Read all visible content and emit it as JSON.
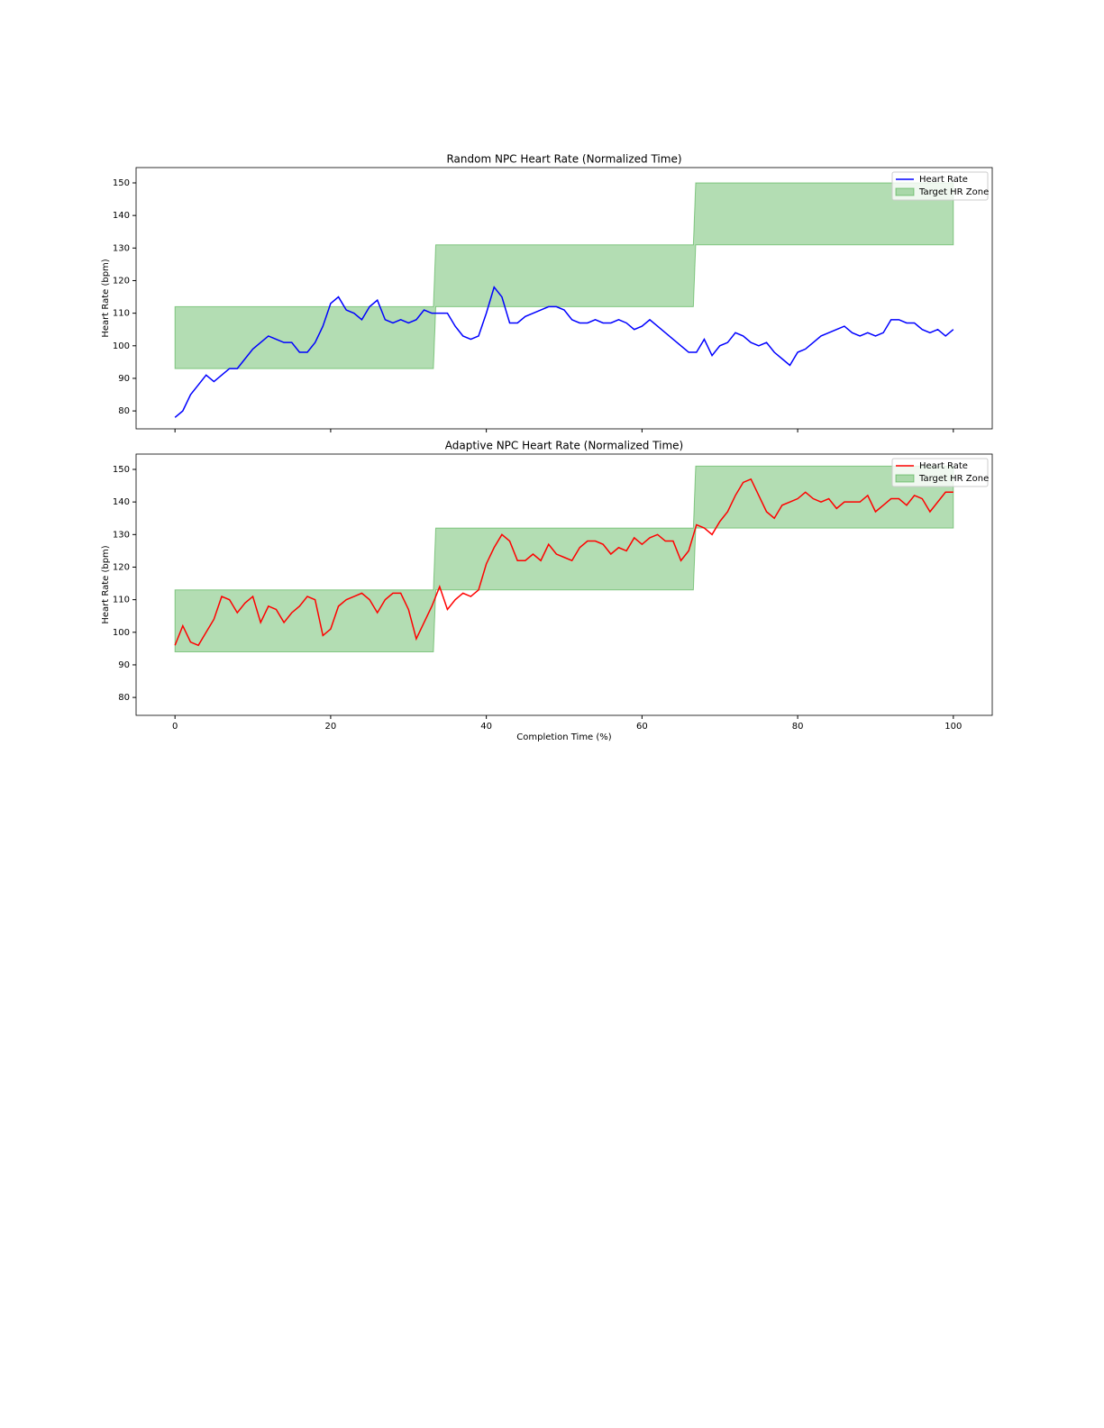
{
  "chart_data": [
    {
      "type": "line",
      "title": "Random NPC Heart Rate (Normalized Time)",
      "ylabel": "Heart Rate (bpm)",
      "xlim": [
        -5,
        105
      ],
      "ylim": [
        74.5,
        154.7
      ],
      "xticks": [
        0,
        20,
        40,
        60,
        80,
        100
      ],
      "xtick_labels": false,
      "yticks": [
        80,
        90,
        100,
        110,
        120,
        130,
        140,
        150
      ],
      "legend": "upper right",
      "x": [
        0,
        1,
        2,
        3,
        4,
        5,
        6,
        7,
        8,
        9,
        10,
        11,
        12,
        13,
        14,
        15,
        16,
        17,
        18,
        19,
        20,
        21,
        22,
        23,
        24,
        25,
        26,
        27,
        28,
        29,
        30,
        31,
        32,
        33,
        34,
        35,
        36,
        37,
        38,
        39,
        40,
        41,
        42,
        43,
        44,
        45,
        46,
        47,
        48,
        49,
        50,
        51,
        52,
        53,
        54,
        55,
        56,
        57,
        58,
        59,
        60,
        61,
        62,
        63,
        64,
        65,
        66,
        67,
        68,
        69,
        70,
        71,
        72,
        73,
        74,
        75,
        76,
        77,
        78,
        79,
        80,
        81,
        82,
        83,
        84,
        85,
        86,
        87,
        88,
        89,
        90,
        91,
        92,
        93,
        94,
        95,
        96,
        97,
        98,
        99,
        100
      ],
      "series": [
        {
          "name": "Heart Rate",
          "color": "#0000ff",
          "values": [
            78,
            80,
            85,
            88,
            91,
            89,
            91,
            93,
            93,
            96,
            99,
            101,
            103,
            102,
            101,
            101,
            98,
            98,
            101,
            106,
            113,
            115,
            111,
            110,
            108,
            112,
            114,
            108,
            107,
            108,
            107,
            108,
            111,
            110,
            110,
            110,
            106,
            103,
            102,
            103,
            110,
            118,
            115,
            107,
            107,
            109,
            110,
            111,
            112,
            112,
            111,
            108,
            107,
            107,
            108,
            107,
            107,
            108,
            107,
            105,
            106,
            108,
            106,
            104,
            102,
            100,
            98,
            98,
            102,
            97,
            100,
            101,
            104,
            103,
            101,
            100,
            101,
            98,
            96,
            94,
            98,
            99,
            101,
            103,
            104,
            105,
            106,
            104,
            103,
            104,
            103,
            104,
            108,
            108,
            107,
            107,
            105,
            104,
            105,
            103,
            105
          ]
        }
      ],
      "zone": {
        "name": "Target HR Zone",
        "color": "#2ca02c",
        "x": [
          0,
          33.2,
          33.5,
          66.6,
          66.9,
          100
        ],
        "lower": [
          93,
          93,
          112,
          112,
          131,
          131
        ],
        "upper": [
          112,
          112,
          131,
          131,
          150,
          150
        ]
      }
    },
    {
      "type": "line",
      "title": "Adaptive NPC Heart Rate (Normalized Time)",
      "ylabel": "Heart Rate (bpm)",
      "xlabel": "Completion Time (%)",
      "xlim": [
        -5,
        105
      ],
      "ylim": [
        74.5,
        154.7
      ],
      "xticks": [
        0,
        20,
        40,
        60,
        80,
        100
      ],
      "xtick_labels": true,
      "yticks": [
        80,
        90,
        100,
        110,
        120,
        130,
        140,
        150
      ],
      "legend": "upper right",
      "x": [
        0,
        1,
        2,
        3,
        4,
        5,
        6,
        7,
        8,
        9,
        10,
        11,
        12,
        13,
        14,
        15,
        16,
        17,
        18,
        19,
        20,
        21,
        22,
        23,
        24,
        25,
        26,
        27,
        28,
        29,
        30,
        31,
        32,
        33,
        34,
        35,
        36,
        37,
        38,
        39,
        40,
        41,
        42,
        43,
        44,
        45,
        46,
        47,
        48,
        49,
        50,
        51,
        52,
        53,
        54,
        55,
        56,
        57,
        58,
        59,
        60,
        61,
        62,
        63,
        64,
        65,
        66,
        67,
        68,
        69,
        70,
        71,
        72,
        73,
        74,
        75,
        76,
        77,
        78,
        79,
        80,
        81,
        82,
        83,
        84,
        85,
        86,
        87,
        88,
        89,
        90,
        91,
        92,
        93,
        94,
        95,
        96,
        97,
        98,
        99,
        100
      ],
      "series": [
        {
          "name": "Heart Rate",
          "color": "#ff0000",
          "values": [
            96,
            102,
            97,
            96,
            100,
            104,
            111,
            110,
            106,
            109,
            111,
            103,
            108,
            107,
            103,
            106,
            108,
            111,
            110,
            99,
            101,
            108,
            110,
            111,
            112,
            110,
            106,
            110,
            112,
            112,
            107,
            98,
            103,
            108,
            114,
            107,
            110,
            112,
            111,
            113,
            121,
            126,
            130,
            128,
            122,
            122,
            124,
            122,
            127,
            124,
            123,
            122,
            126,
            128,
            128,
            127,
            124,
            126,
            125,
            129,
            127,
            129,
            130,
            128,
            128,
            122,
            125,
            133,
            132,
            130,
            134,
            137,
            142,
            146,
            147,
            142,
            137,
            135,
            139,
            140,
            141,
            143,
            141,
            140,
            141,
            138,
            140,
            140,
            140,
            142,
            137,
            139,
            141,
            141,
            139,
            142,
            141,
            137,
            140,
            143,
            143
          ]
        }
      ],
      "zone": {
        "name": "Target HR Zone",
        "color": "#2ca02c",
        "x": [
          0,
          33.2,
          33.5,
          66.6,
          66.9,
          100
        ],
        "lower": [
          94,
          94,
          113,
          113,
          132,
          132
        ],
        "upper": [
          113,
          113,
          132,
          132,
          151,
          151
        ]
      }
    }
  ]
}
